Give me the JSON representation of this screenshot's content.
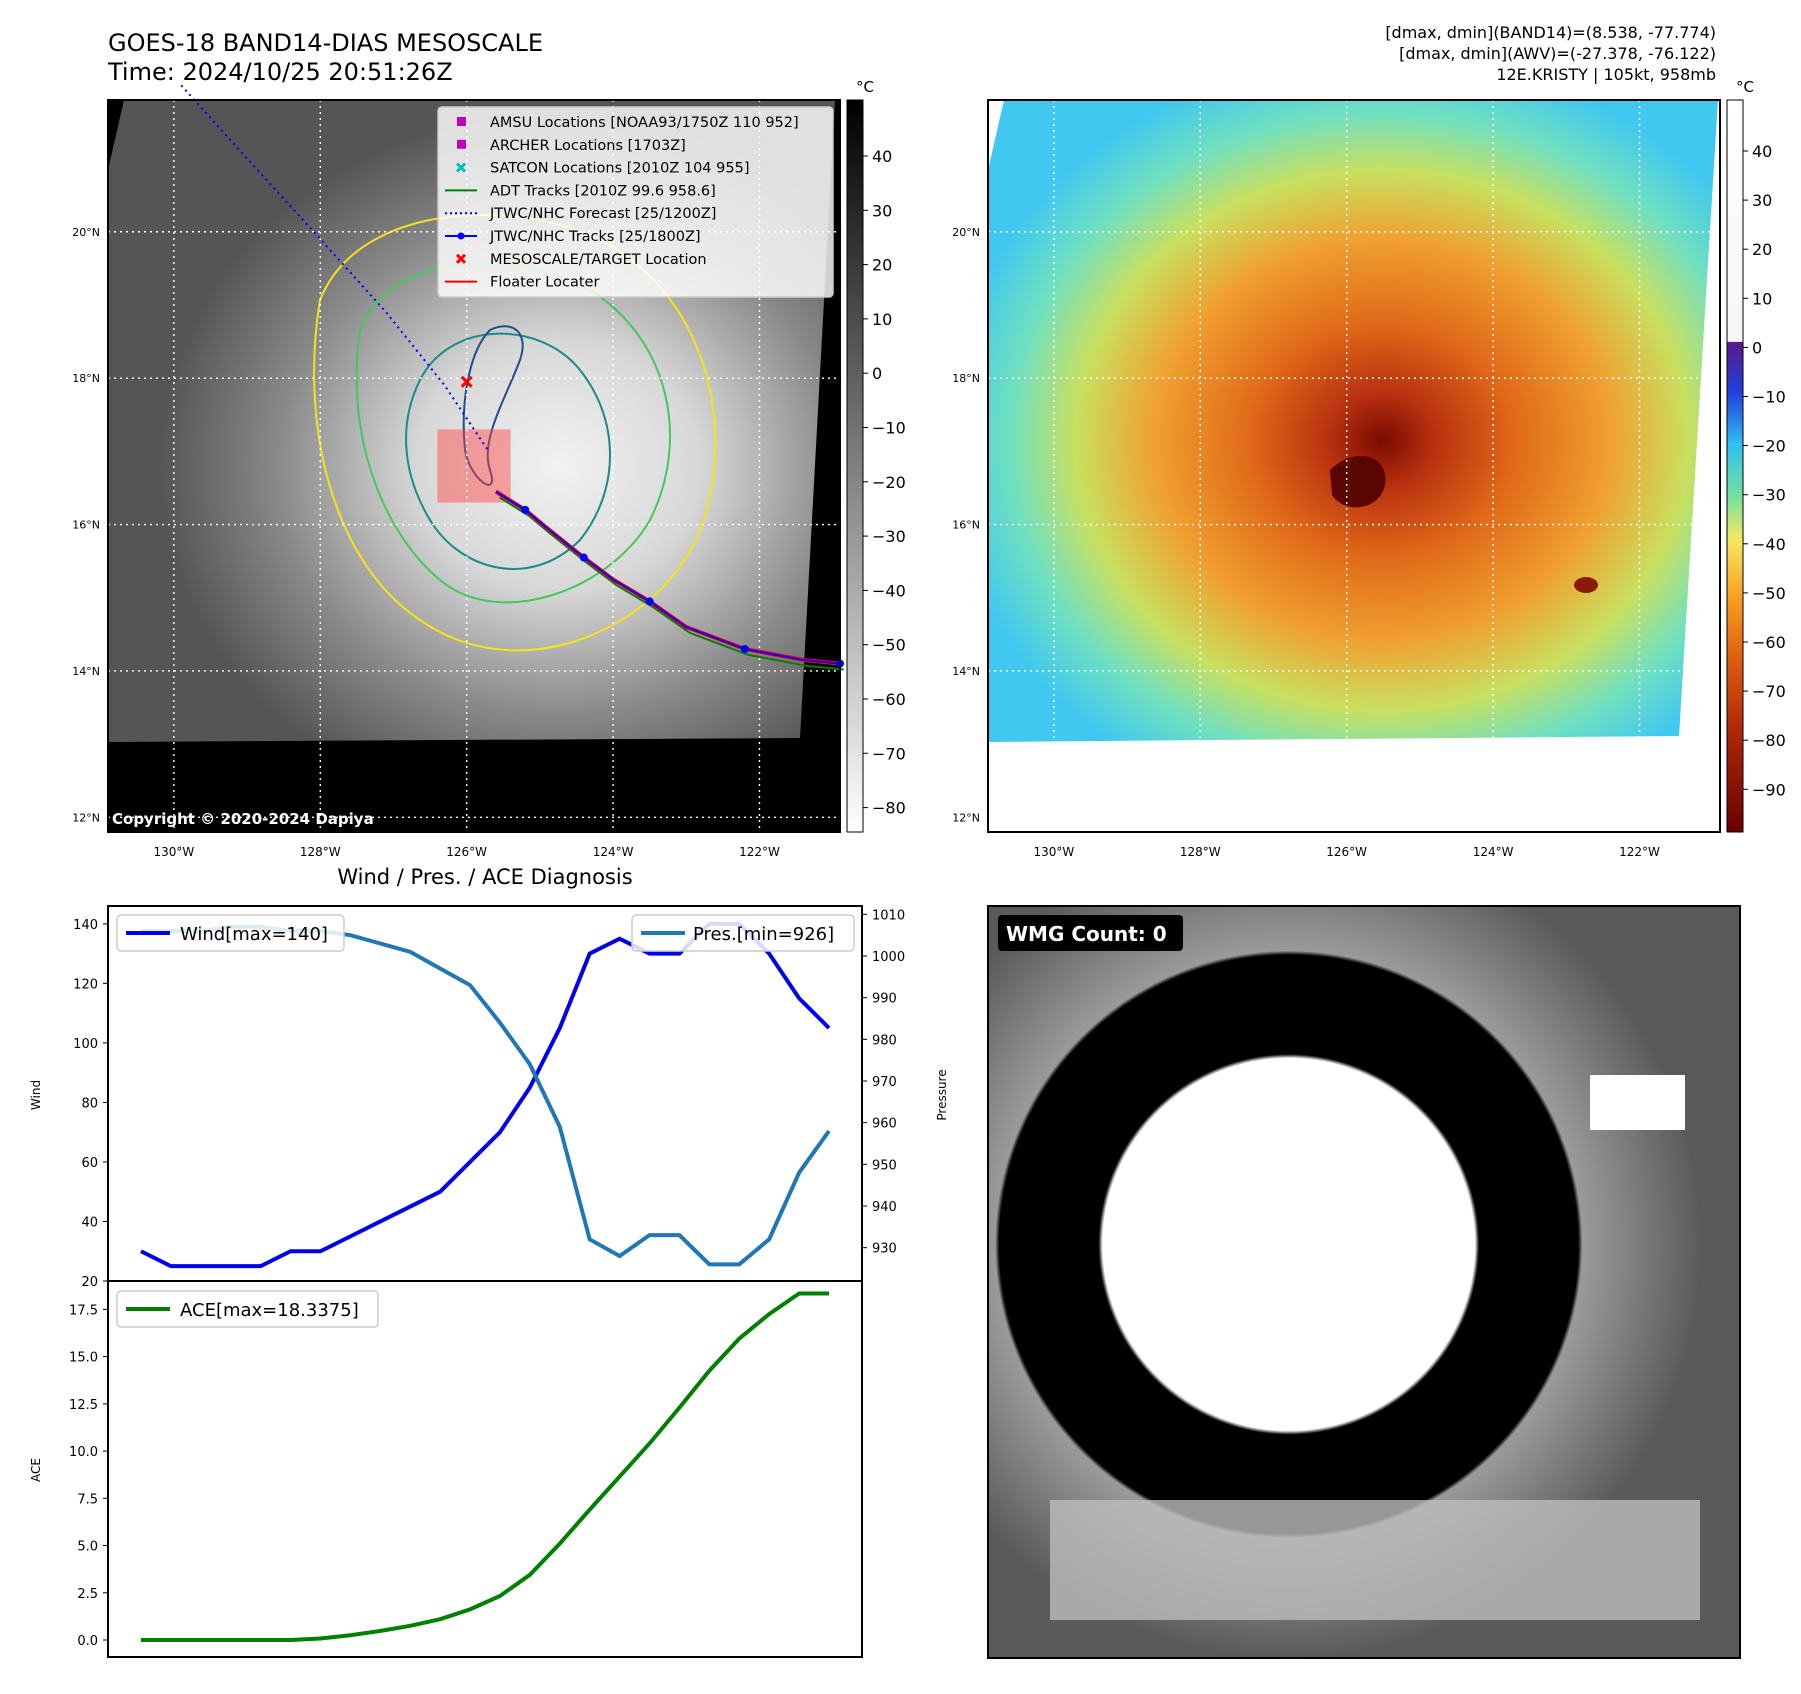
{
  "header": {
    "title_line1": "GOES-18 BAND14-DIAS MESOSCALE",
    "title_line2": "Time: 2024/10/25 20:51:26Z",
    "info_line1": "[dmax, dmin](BAND14)=(8.538, -77.774)",
    "info_line2": "[dmax, dmin](AWV)=(-27.378, -76.122)",
    "info_line3": "12E.KRISTY | 105kt, 958mb"
  },
  "map": {
    "lat_labels": [
      "20°N",
      "18°N",
      "16°N",
      "14°N",
      "12°N"
    ],
    "lat_values": [
      20,
      18,
      16,
      14,
      12
    ],
    "lon_labels": [
      "130°W",
      "128°W",
      "126°W",
      "124°W",
      "122°W"
    ],
    "lon_values": [
      -130,
      -128,
      -126,
      -124,
      -122
    ],
    "extent": {
      "lon_min": -130.9,
      "lon_max": -120.9,
      "lat_min": 11.8,
      "lat_max": 21.8
    },
    "copyright": "Copyright © 2020-2024 Dapiya",
    "colorbar_unit": "°C",
    "gray_colorbar_ticks": [
      "40",
      "30",
      "20",
      "10",
      "0",
      "−10",
      "−20",
      "−30",
      "−40",
      "−50",
      "−60",
      "−70",
      "−80"
    ],
    "color_colorbar_ticks": [
      "40",
      "30",
      "20",
      "10",
      "0",
      "−10",
      "−20",
      "−30",
      "−40",
      "−50",
      "−60",
      "−70",
      "−80",
      "−90"
    ],
    "legend": [
      {
        "label": "AMSU Locations [NOAA93/1750Z 110 952]",
        "marker": "square",
        "color": "#bf00bf"
      },
      {
        "label": "ARCHER Locations [1703Z]",
        "marker": "square",
        "color": "#bf00bf"
      },
      {
        "label": "SATCON Locations [2010Z 104 955]",
        "marker": "x",
        "color": "#00bfbf"
      },
      {
        "label": "ADT Tracks [2010Z 99.6 958.6]",
        "marker": "line",
        "color": "#008000"
      },
      {
        "label": "JTWC/NHC Forecast [25/1200Z]",
        "marker": "dotted",
        "color": "#0000ff"
      },
      {
        "label": "JTWC/NHC Tracks [25/1800Z]",
        "marker": "line-dot",
        "color": "#0000ff"
      },
      {
        "label": "MESOSCALE/TARGET Location",
        "marker": "x",
        "color": "#ff0000"
      },
      {
        "label": "Floater Locater",
        "marker": "line",
        "color": "#ff0000"
      }
    ],
    "track": [
      [
        -120.9,
        14.1
      ],
      [
        -121.4,
        14.15
      ],
      [
        -122.2,
        14.3
      ],
      [
        -123.0,
        14.6
      ],
      [
        -123.5,
        14.95
      ],
      [
        -124.0,
        15.25
      ],
      [
        -124.4,
        15.55
      ],
      [
        -124.9,
        15.95
      ],
      [
        -125.2,
        16.2
      ],
      [
        -125.6,
        16.45
      ]
    ],
    "forecast": [
      [
        -129.9,
        22.0
      ],
      [
        -129.0,
        21.0
      ],
      [
        -128.0,
        19.9
      ],
      [
        -127.1,
        18.9
      ],
      [
        -126.3,
        17.9
      ],
      [
        -125.7,
        17.0
      ]
    ],
    "target": [
      -126.0,
      17.95
    ],
    "floater_box": [
      -126.4,
      -125.4,
      16.3,
      17.3
    ]
  },
  "wind_pres_chart": {
    "title": "Wind / Pres. / ACE Diagnosis",
    "ylabel_left": "Wind",
    "ylabel_right": "Pressure",
    "wind_legend": "Wind[max=140]",
    "pres_legend": "Pres.[min=926]",
    "wind_ticks": [
      "140",
      "120",
      "100",
      "80",
      "60",
      "40",
      "20"
    ],
    "pres_ticks": [
      "1010",
      "1000",
      "990",
      "980",
      "970",
      "960",
      "950",
      "940",
      "930"
    ]
  },
  "ace_chart": {
    "ylabel": "ACE",
    "legend": "ACE[max=18.3375]",
    "ticks": [
      "17.5",
      "15.0",
      "12.5",
      "10.0",
      "7.5",
      "5.0",
      "2.5",
      "0.0"
    ]
  },
  "wmg": {
    "label": "WMG Count: 0"
  },
  "chart_data": [
    {
      "type": "line",
      "x": [
        0,
        1,
        2,
        3,
        4,
        5,
        6,
        7,
        8,
        9,
        10,
        11,
        12,
        13,
        14,
        15,
        16,
        17,
        18,
        19,
        20,
        21,
        22,
        23
      ],
      "series": [
        {
          "name": "Wind[max=140]",
          "axis": "left",
          "color": "#0000ee",
          "values": [
            30,
            25,
            25,
            25,
            25,
            30,
            30,
            35,
            40,
            45,
            50,
            60,
            70,
            85,
            105,
            130,
            135,
            130,
            130,
            140,
            140,
            130,
            115,
            105
          ]
        },
        {
          "name": "Pres.[min=926]",
          "axis": "right",
          "color": "#1f77b4",
          "values": [
            1006,
            1006,
            1006,
            1007,
            1007,
            1006,
            1006,
            1005,
            1003,
            1001,
            997,
            993,
            984,
            974,
            959,
            932,
            928,
            933,
            933,
            926,
            926,
            932,
            948,
            958
          ]
        }
      ],
      "ylim_left": [
        20,
        146
      ],
      "ylim_right": [
        922,
        1012
      ],
      "xlabel": "",
      "ylabel_left": "Wind",
      "ylabel_right": "Pressure",
      "legend": "top-left and top-right"
    },
    {
      "type": "line",
      "x": [
        0,
        1,
        2,
        3,
        4,
        5,
        6,
        7,
        8,
        9,
        10,
        11,
        12,
        13,
        14,
        15,
        16,
        17,
        18,
        19,
        20,
        21,
        22,
        23
      ],
      "series": [
        {
          "name": "ACE[max=18.3375]",
          "color": "#008000",
          "values": [
            0,
            0,
            0,
            0,
            0,
            0,
            0.08,
            0.25,
            0.48,
            0.75,
            1.1,
            1.62,
            2.33,
            3.45,
            5.1,
            6.9,
            8.65,
            10.4,
            12.3,
            14.25,
            15.95,
            17.25,
            18.34,
            18.34
          ]
        }
      ],
      "ylim": [
        -0.9,
        19.0
      ],
      "ylabel": "ACE",
      "legend": "top-left"
    }
  ]
}
